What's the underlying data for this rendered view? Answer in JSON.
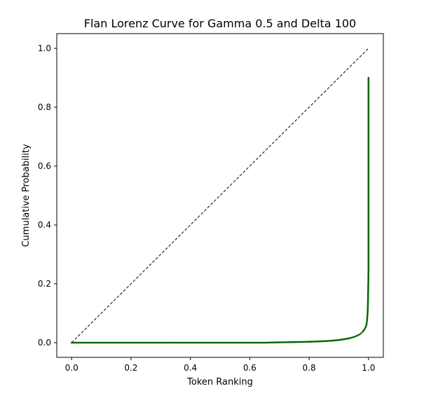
{
  "chart_data": {
    "type": "scatter",
    "title": "Flan Lorenz Curve for Gamma 0.5 and Delta 100",
    "xlabel": "Token Ranking",
    "ylabel": "Cumulative Probability",
    "xlim": [
      -0.05,
      1.05
    ],
    "ylim": [
      -0.05,
      1.05
    ],
    "x_ticks": [
      0.0,
      0.2,
      0.4,
      0.6,
      0.8,
      1.0
    ],
    "x_tick_labels": [
      "0.0",
      "0.2",
      "0.4",
      "0.6",
      "0.8",
      "1.0"
    ],
    "y_ticks": [
      0.0,
      0.2,
      0.4,
      0.6,
      0.8,
      1.0
    ],
    "y_tick_labels": [
      "0.0",
      "0.2",
      "0.4",
      "0.6",
      "0.8",
      "1.0"
    ],
    "grid": false,
    "legend": "none",
    "series": [
      {
        "style": "dotted-points",
        "color": "#006400",
        "x": [
          0.0,
          0.05,
          0.1,
          0.15,
          0.2,
          0.25,
          0.3,
          0.35,
          0.4,
          0.45,
          0.5,
          0.55,
          0.6,
          0.65,
          0.7,
          0.75,
          0.8,
          0.85,
          0.88,
          0.9,
          0.92,
          0.94,
          0.95,
          0.96,
          0.97,
          0.975,
          0.98,
          0.985,
          0.99,
          0.993,
          0.995,
          0.997,
          0.998,
          0.999,
          1.0,
          1.0,
          1.0,
          1.0,
          1.0,
          1.0,
          1.0,
          1.0
        ],
        "y": [
          0.0,
          0.0,
          0.0,
          0.0,
          0.0,
          0.0,
          0.0,
          0.0,
          0.0,
          0.0,
          0.0,
          0.0,
          0.0,
          0.0,
          0.001,
          0.002,
          0.003,
          0.005,
          0.007,
          0.009,
          0.012,
          0.016,
          0.019,
          0.023,
          0.028,
          0.032,
          0.037,
          0.043,
          0.052,
          0.06,
          0.075,
          0.1,
          0.13,
          0.18,
          0.25,
          0.35,
          0.45,
          0.55,
          0.65,
          0.75,
          0.85,
          0.9
        ]
      },
      {
        "style": "dashed-line",
        "color": "#000000",
        "x": [
          0.0,
          1.0
        ],
        "y": [
          0.0,
          1.0
        ]
      }
    ]
  }
}
